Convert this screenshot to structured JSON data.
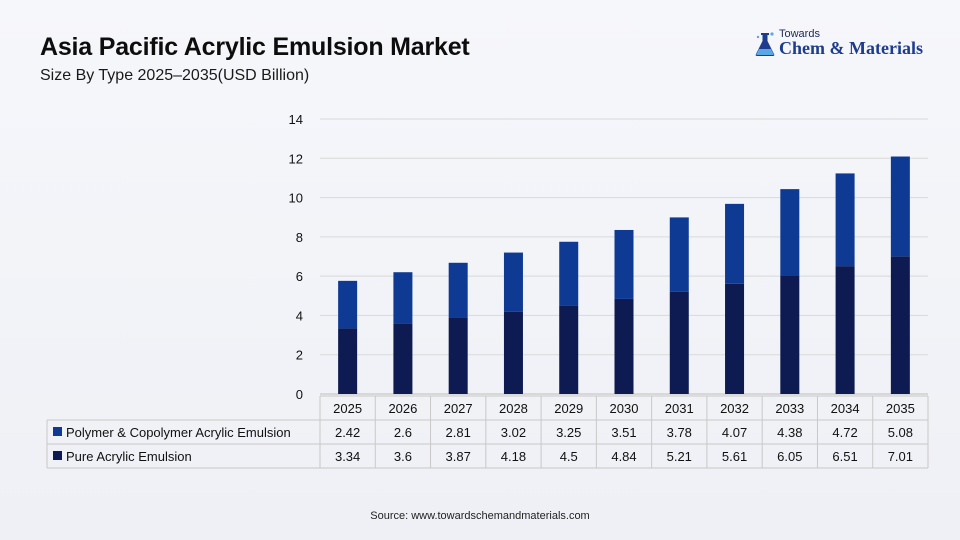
{
  "header": {
    "title": "Asia Pacific Acrylic Emulsion Market",
    "subtitle": "Size By Type 2025–2035(USD Billion)"
  },
  "logo": {
    "top": "Towards",
    "main": "Chem & Materials",
    "icon": "flask-icon"
  },
  "footer": {
    "source": "Source: www.towardschemandmaterials.com"
  },
  "colors": {
    "polymer": "#0e3a94",
    "pure": "#0d1b52",
    "grid": "#d9d9d9",
    "table_border": "#c8c8c8"
  },
  "chart_data": {
    "type": "bar",
    "stacked": true,
    "categories": [
      "2025",
      "2026",
      "2027",
      "2028",
      "2029",
      "2030",
      "2031",
      "2032",
      "2033",
      "2034",
      "2035"
    ],
    "series": [
      {
        "name": "Polymer & Copolymer Acrylic Emulsion",
        "values": [
          2.42,
          2.6,
          2.81,
          3.02,
          3.25,
          3.51,
          3.78,
          4.07,
          4.38,
          4.72,
          5.08
        ]
      },
      {
        "name": "Pure Acrylic Emulsion",
        "values": [
          3.34,
          3.6,
          3.87,
          4.18,
          4.5,
          4.84,
          5.21,
          5.61,
          6.05,
          6.51,
          7.01
        ]
      }
    ],
    "yticks": [
      "0",
      "2",
      "4",
      "6",
      "8",
      "10",
      "12",
      "14"
    ],
    "ylim": [
      0,
      14
    ],
    "grid": true,
    "legend": "data-table-below"
  }
}
